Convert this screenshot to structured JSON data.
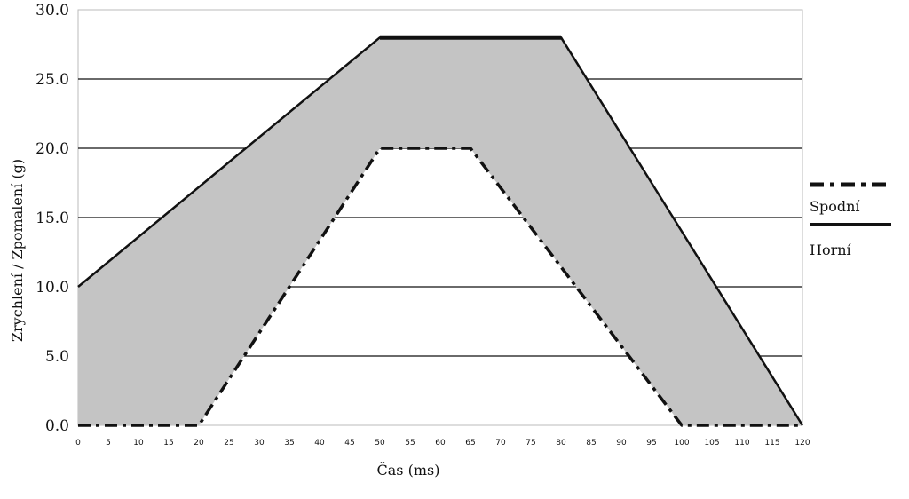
{
  "chart_data": {
    "type": "area",
    "title": "",
    "xlabel": "Čas  (ms)",
    "ylabel": "Zrychlení / Zpomalení (g)",
    "xlim": [
      0,
      120
    ],
    "ylim": [
      0,
      30
    ],
    "x_ticks": [
      0,
      5,
      10,
      15,
      20,
      25,
      30,
      35,
      40,
      45,
      50,
      55,
      60,
      65,
      70,
      75,
      80,
      85,
      90,
      95,
      100,
      105,
      110,
      115,
      120
    ],
    "y_ticks": [
      0,
      5,
      10,
      15,
      20,
      25,
      30
    ],
    "y_tick_labels": [
      "0.0",
      "5.0",
      "10.0",
      "15.0",
      "20.0",
      "25.0",
      "30.0"
    ],
    "grid": "horizontal",
    "legend_position": "right",
    "fill_color": "#c4c4c4",
    "series": [
      {
        "name": "Spodní",
        "style": "dash-dot",
        "color": "#111111",
        "x": [
          0,
          20,
          50,
          65,
          100,
          120
        ],
        "y": [
          0,
          0,
          20,
          20,
          0,
          0
        ]
      },
      {
        "name": "Horní",
        "style": "solid",
        "color": "#111111",
        "x": [
          0,
          50,
          80,
          120
        ],
        "y": [
          10,
          28,
          28,
          0
        ]
      }
    ]
  }
}
